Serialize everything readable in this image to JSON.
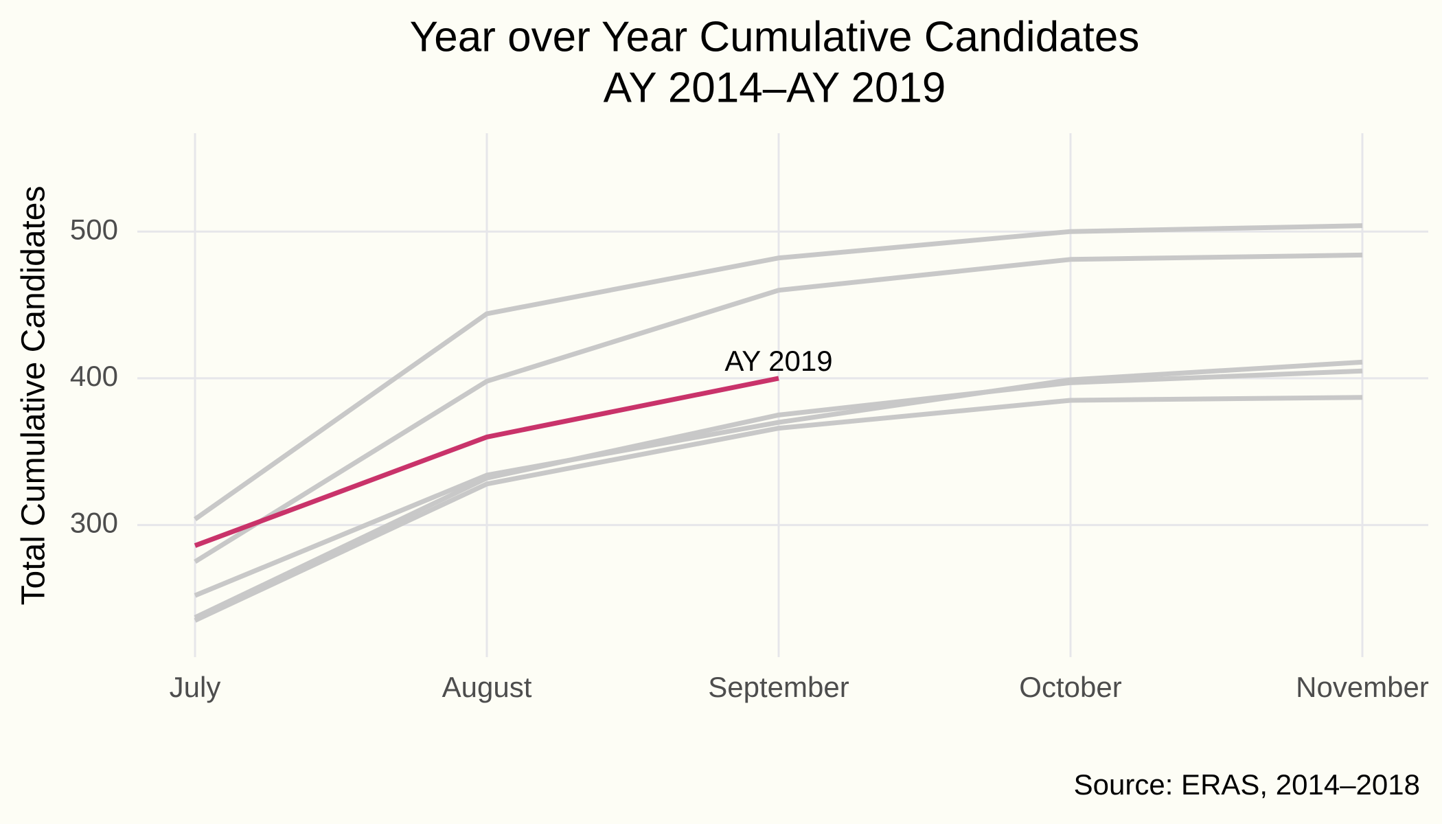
{
  "chart_data": {
    "type": "line",
    "title": "Year over Year Cumulative Candidates",
    "subtitle": "AY 2014–AY 2019",
    "y_label": "Total Cumulative Candidates",
    "source": "Source: ERAS, 2014–2018",
    "categories": [
      "July",
      "August",
      "September",
      "October",
      "November"
    ],
    "series": [
      {
        "color": "#c8c8c8",
        "values": [
          304,
          444,
          482,
          500,
          504
        ]
      },
      {
        "color": "#c8c8c8",
        "values": [
          275,
          398,
          460,
          481,
          484
        ]
      },
      {
        "color": "#c8c8c8",
        "values": [
          252,
          334,
          370,
          399,
          411
        ]
      },
      {
        "color": "#c8c8c8",
        "values": [
          237,
          332,
          375,
          397,
          405
        ]
      },
      {
        "color": "#c8c8c8",
        "values": [
          235,
          328,
          366,
          385,
          387
        ]
      },
      {
        "name": "AY 2019",
        "color": "#c9336a",
        "values": [
          286,
          360,
          400,
          null,
          null
        ]
      }
    ],
    "ylim": [
      210,
      567
    ],
    "yticks": [
      300,
      400,
      500
    ],
    "grid": true
  }
}
